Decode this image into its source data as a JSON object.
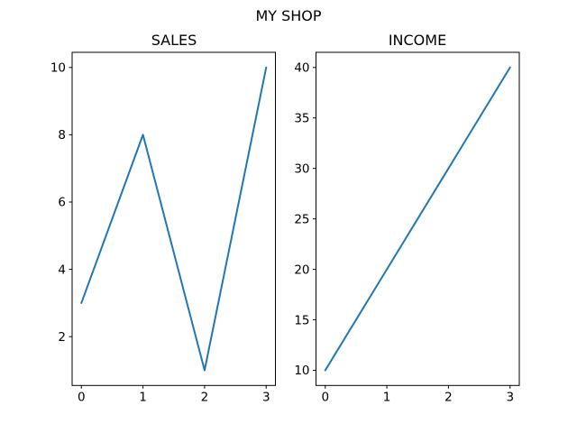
{
  "figure": {
    "suptitle": "MY SHOP",
    "background": "#ffffff",
    "text_color": "#000000",
    "frame_color": "#000000"
  },
  "chart_data": [
    {
      "type": "line",
      "title": "SALES",
      "x": [
        0,
        1,
        2,
        3
      ],
      "y": [
        3,
        8,
        1,
        10
      ],
      "xticks": [
        0,
        1,
        2,
        3
      ],
      "yticks": [
        2,
        4,
        6,
        8,
        10
      ],
      "xlim": [
        -0.15,
        3.15
      ],
      "ylim": [
        0.55,
        10.45
      ],
      "line_color": "#1f77b4",
      "xlabel": "",
      "ylabel": "",
      "grid": false,
      "legend": null
    },
    {
      "type": "line",
      "title": "INCOME",
      "x": [
        0,
        1,
        2,
        3
      ],
      "y": [
        10,
        20,
        30,
        40
      ],
      "xticks": [
        0,
        1,
        2,
        3
      ],
      "yticks": [
        10,
        15,
        20,
        25,
        30,
        35,
        40
      ],
      "xlim": [
        -0.15,
        3.15
      ],
      "ylim": [
        8.5,
        41.5
      ],
      "line_color": "#1f77b4",
      "xlabel": "",
      "ylabel": "",
      "grid": false,
      "legend": null
    }
  ]
}
